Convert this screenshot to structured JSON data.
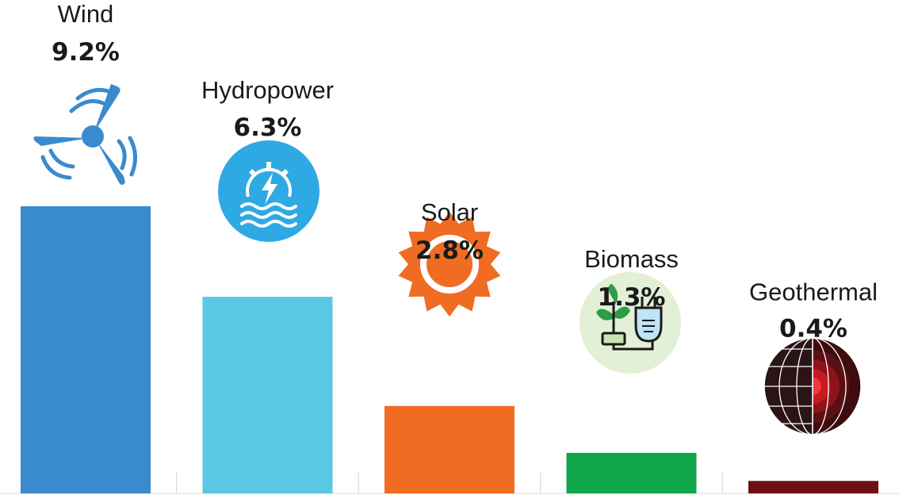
{
  "chart_data": {
    "type": "bar",
    "categories": [
      "Wind",
      "Hydropower",
      "Solar",
      "Biomass",
      "Geothermal"
    ],
    "values": [
      9.2,
      6.3,
      2.8,
      1.3,
      0.4
    ],
    "value_labels": [
      "9.2%",
      "6.3%",
      "2.8%",
      "1.3%",
      "0.4%"
    ],
    "unit": "%",
    "colors": [
      "#3a8bcd",
      "#5bc8e3",
      "#ef6c22",
      "#11a64c",
      "#6e1012"
    ],
    "icons": [
      "wind-turbine-icon",
      "hydropower-icon",
      "sun-icon",
      "biomass-plug-icon",
      "earth-core-icon"
    ],
    "title": "",
    "xlabel": "",
    "ylabel": "",
    "grid": false,
    "legend": "none",
    "ylim": [
      0,
      9.2
    ]
  }
}
